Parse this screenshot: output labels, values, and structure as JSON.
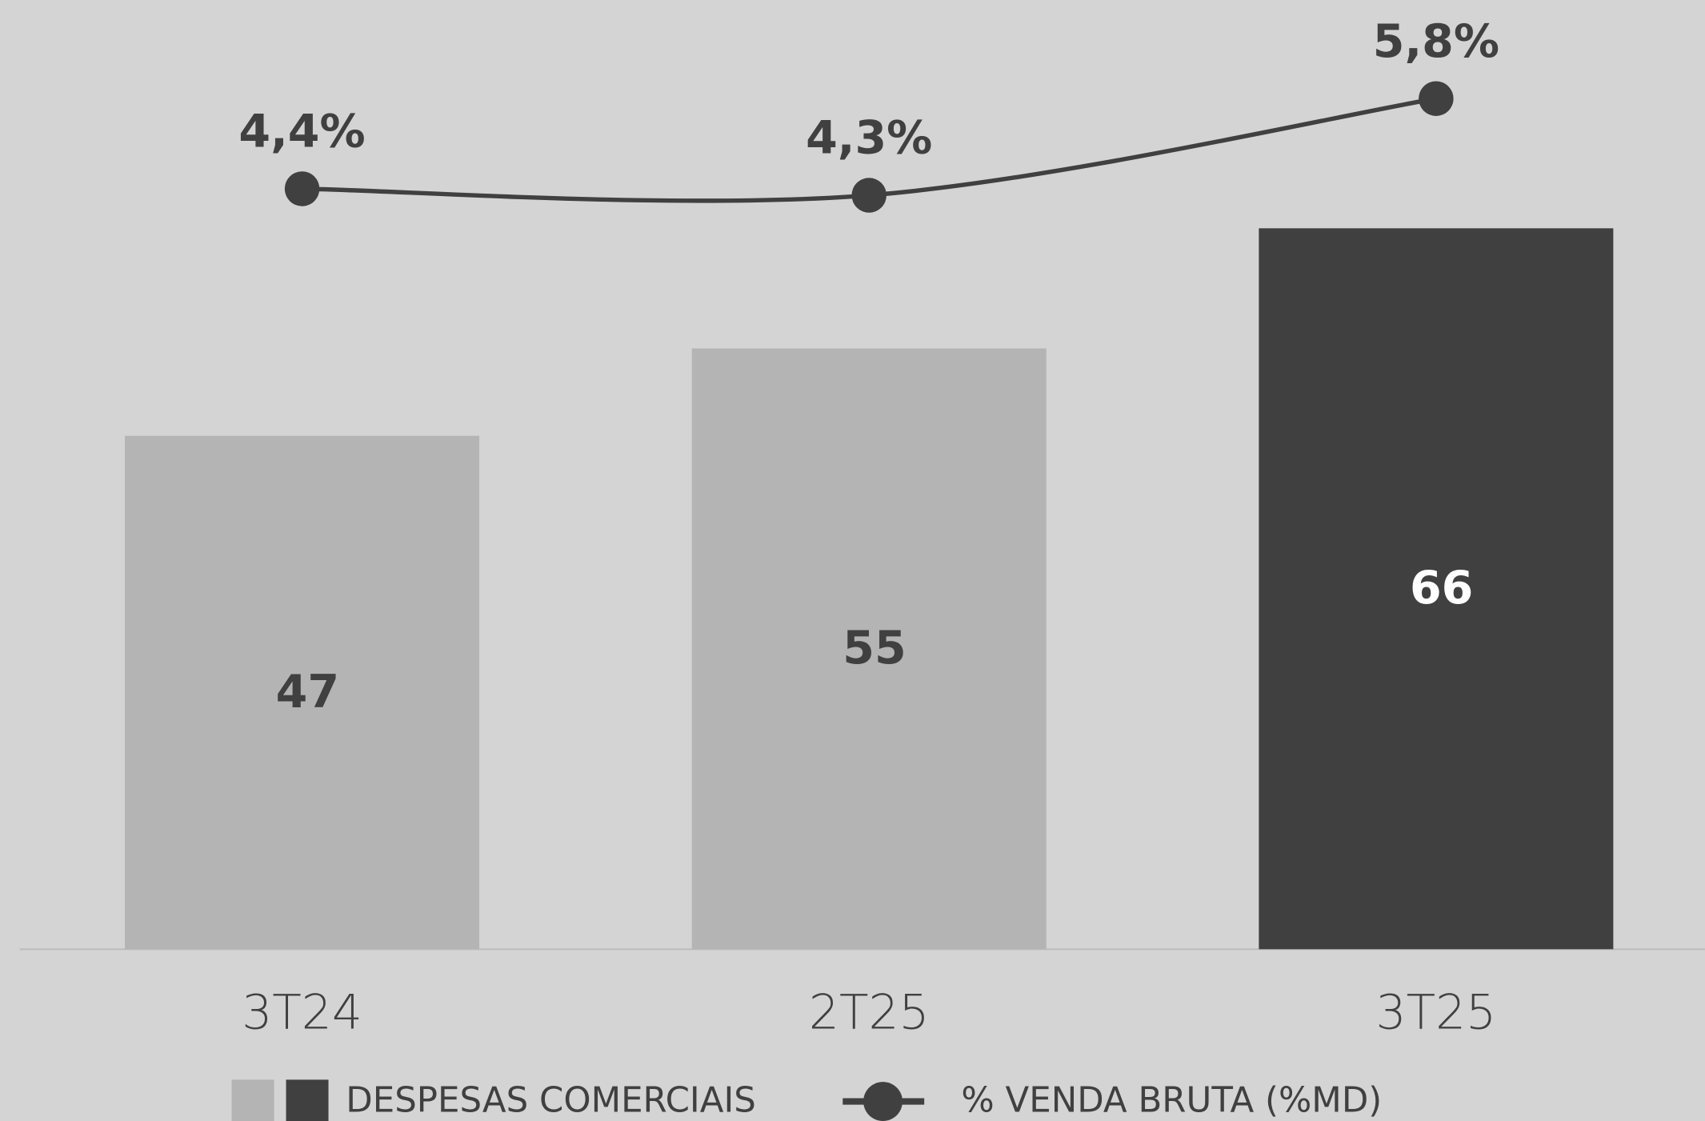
{
  "chart_data": {
    "type": "bar-line",
    "categories": [
      "3T24",
      "2T25",
      "3T25"
    ],
    "series": [
      {
        "name": "DESPESAS COMERCIAIS",
        "type": "bar",
        "colors": [
          "#b4b4b4",
          "#b4b4b4",
          "#404040"
        ],
        "values": [
          47,
          55,
          66
        ]
      },
      {
        "name": "% VENDA BRUTA (%MD)",
        "type": "line",
        "axis": "y2",
        "color": "#404040",
        "values": [
          4.4,
          4.3,
          5.8
        ],
        "value_labels": [
          "4,4%",
          "4,3%",
          "5,8%"
        ]
      }
    ],
    "ylim": [
      0,
      86.9
    ],
    "y2lim": [
      -7.4,
      7.33
    ]
  }
}
